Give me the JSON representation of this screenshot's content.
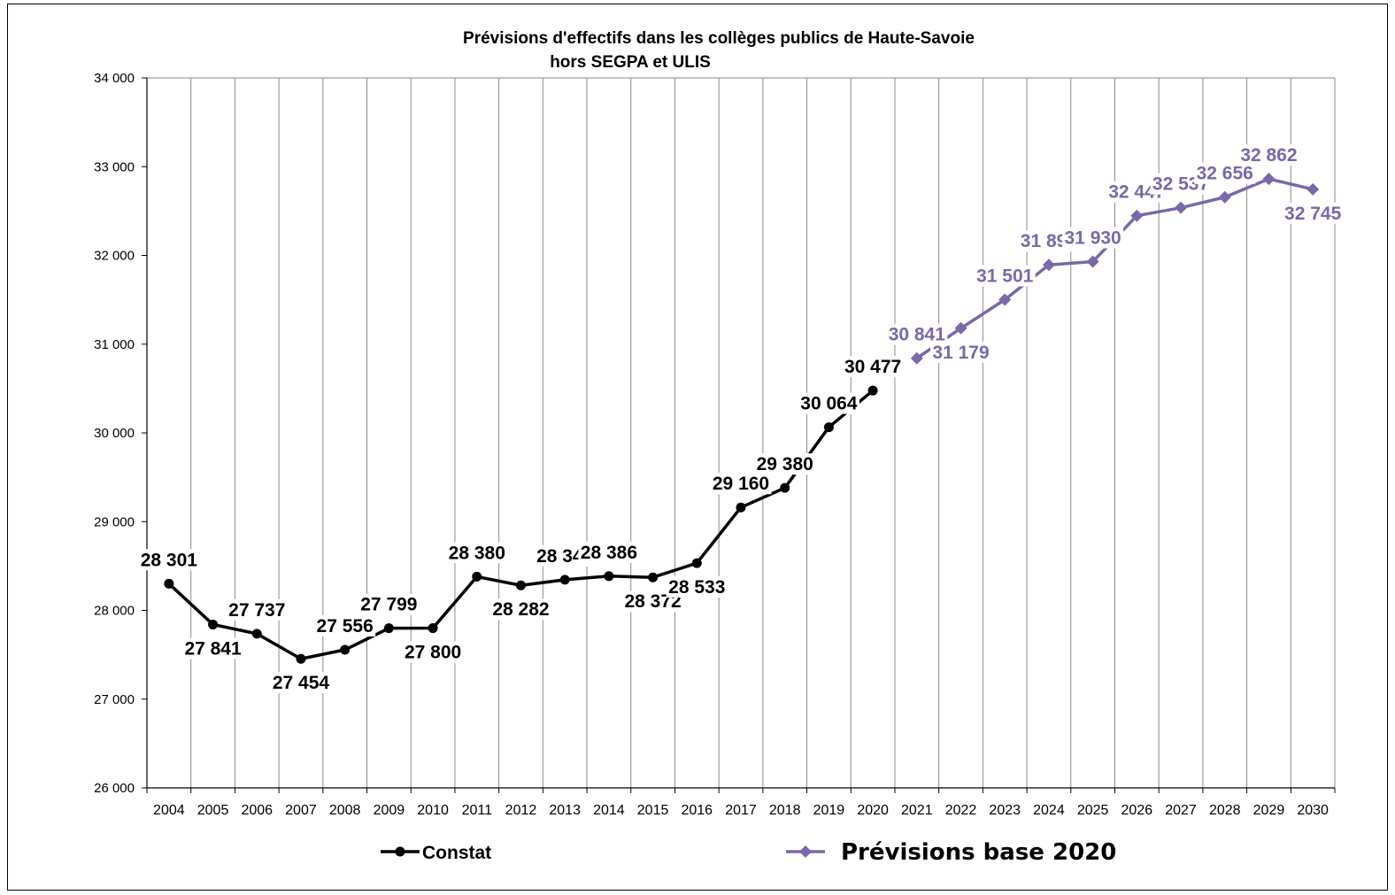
{
  "chart_data": {
    "type": "line",
    "title_line1": "Prévisions d'effectifs dans les collèges publics de Haute-Savoie",
    "title_line2": "hors SEGPA et ULIS",
    "xlabel": "",
    "ylabel": "",
    "ylim": [
      26000,
      34000
    ],
    "yticks": [
      26000,
      27000,
      28000,
      29000,
      30000,
      31000,
      32000,
      33000,
      34000
    ],
    "ytick_labels": [
      "26 000",
      "27 000",
      "28 000",
      "29 000",
      "30 000",
      "31 000",
      "32 000",
      "33 000",
      "34 000"
    ],
    "categories": [
      "2004",
      "2005",
      "2006",
      "2007",
      "2008",
      "2009",
      "2010",
      "2011",
      "2012",
      "2013",
      "2014",
      "2015",
      "2016",
      "2017",
      "2018",
      "2019",
      "2020",
      "2021",
      "2022",
      "2023",
      "2024",
      "2025",
      "2026",
      "2027",
      "2028",
      "2029",
      "2030"
    ],
    "grid": "vertical",
    "legend_position": "bottom",
    "series": [
      {
        "name": "Constat",
        "color": "#000000",
        "marker": "circle",
        "values": [
          28301,
          27841,
          27737,
          27454,
          27556,
          27799,
          27800,
          28380,
          28282,
          28345,
          28386,
          28372,
          28533,
          29160,
          29380,
          30064,
          30477,
          null,
          null,
          null,
          null,
          null,
          null,
          null,
          null,
          null,
          null
        ],
        "labels": [
          "28 301",
          "27 841",
          "27 737",
          "27 454",
          "27 556",
          "27 799",
          "27 800",
          "28 380",
          "28 282",
          "28 345",
          "28 386",
          "28 372",
          "28 533",
          "29 160",
          "29 380",
          "30 064",
          "30 477",
          null,
          null,
          null,
          null,
          null,
          null,
          null,
          null,
          null,
          null
        ],
        "label_positions": [
          "above",
          "below",
          "above",
          "below",
          "above",
          "above",
          "below",
          "above",
          "below",
          "above",
          "above",
          "below",
          "below",
          "above",
          "above",
          "above",
          "above",
          null,
          null,
          null,
          null,
          null,
          null,
          null,
          null,
          null,
          null
        ]
      },
      {
        "name": "Prévisions base 2020",
        "color": "#7b68a8",
        "marker": "diamond",
        "values": [
          null,
          null,
          null,
          null,
          null,
          null,
          null,
          null,
          null,
          null,
          null,
          null,
          null,
          null,
          null,
          null,
          null,
          30841,
          31179,
          31501,
          31893,
          31930,
          32447,
          32537,
          32656,
          32862,
          32745
        ],
        "labels": [
          null,
          null,
          null,
          null,
          null,
          null,
          null,
          null,
          null,
          null,
          null,
          null,
          null,
          null,
          null,
          null,
          null,
          "30 841",
          "31 179",
          "31 501",
          "31 893",
          "31 930",
          "32 447",
          "32 537",
          "32 656",
          "32 862",
          "32 745"
        ],
        "label_positions": [
          null,
          null,
          null,
          null,
          null,
          null,
          null,
          null,
          null,
          null,
          null,
          null,
          null,
          null,
          null,
          null,
          null,
          "above",
          "below",
          "above",
          "above",
          "above",
          "above",
          "above",
          "above",
          "above",
          "below"
        ]
      }
    ]
  }
}
